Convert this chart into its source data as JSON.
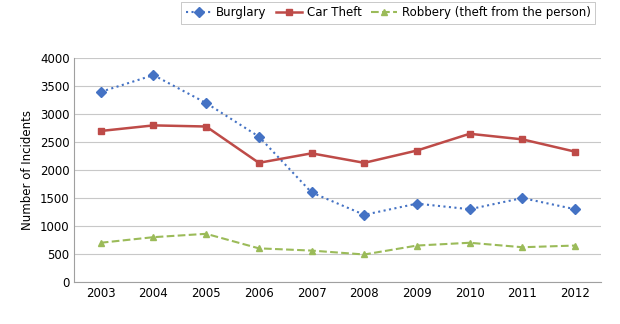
{
  "years": [
    2003,
    2004,
    2005,
    2006,
    2007,
    2008,
    2009,
    2010,
    2011,
    2012
  ],
  "burglary": [
    3400,
    3700,
    3200,
    2600,
    1600,
    1200,
    1400,
    1300,
    1500,
    1300
  ],
  "car_theft": [
    2700,
    2800,
    2780,
    2130,
    2300,
    2130,
    2350,
    2650,
    2550,
    2330
  ],
  "robbery": [
    700,
    800,
    860,
    600,
    560,
    490,
    650,
    700,
    620,
    650
  ],
  "burglary_color": "#4472C4",
  "car_theft_color": "#BE4B48",
  "robbery_color": "#9BBB59",
  "ylabel": "Number of Incidents",
  "ylim": [
    0,
    4000
  ],
  "yticks": [
    0,
    500,
    1000,
    1500,
    2000,
    2500,
    3000,
    3500,
    4000
  ],
  "legend_labels": [
    "Burglary",
    "Car Theft",
    "Robbery (theft from the person)"
  ],
  "background_color": "#ffffff",
  "grid_color": "#c8c8c8"
}
